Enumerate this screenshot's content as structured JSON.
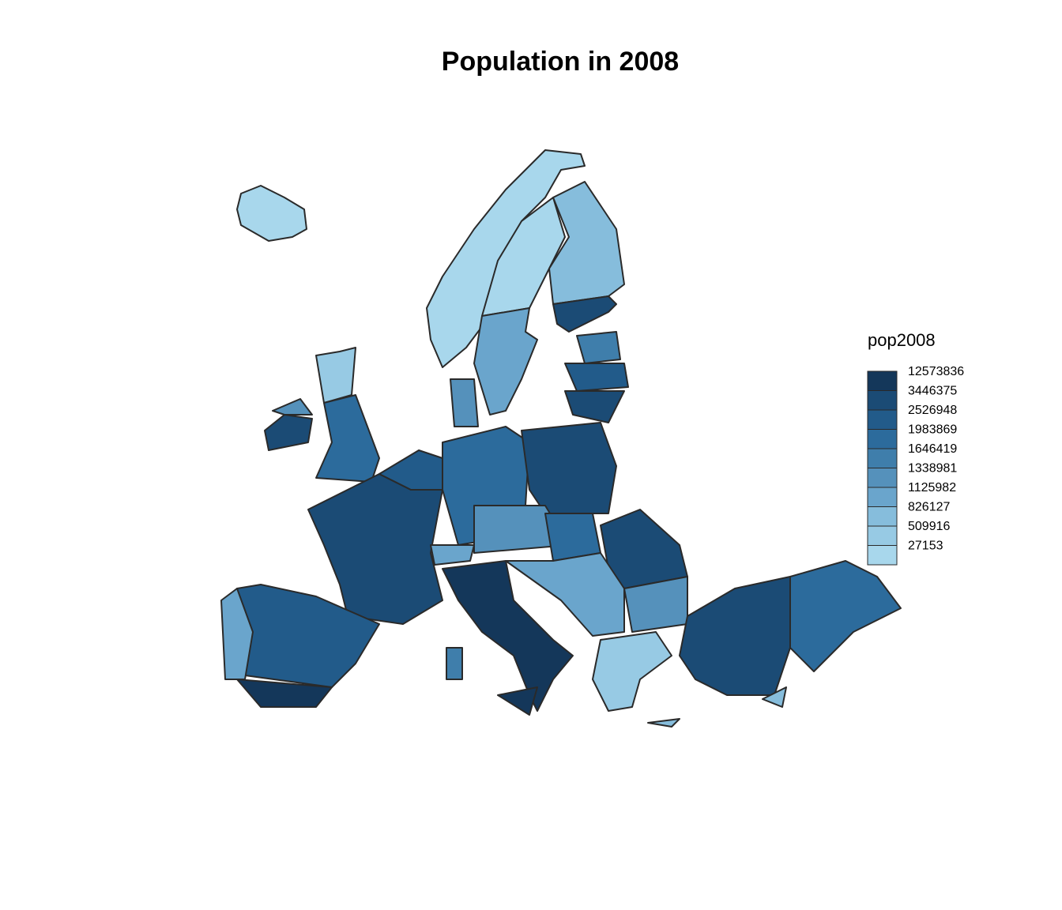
{
  "chart_data": {
    "type": "choropleth",
    "title": "Population in 2008",
    "legend": {
      "title": "pop2008",
      "breaks": [
        12573836,
        3446375,
        2526948,
        1983869,
        1646419,
        1338981,
        1125982,
        826127,
        509916,
        27153
      ],
      "colors": [
        "#14375a",
        "#1b4b75",
        "#225b8a",
        "#2c6b9c",
        "#3f7eab",
        "#5591bb",
        "#6aa5cc",
        "#86bddc",
        "#97cae4",
        "#a8d7ec"
      ]
    }
  }
}
